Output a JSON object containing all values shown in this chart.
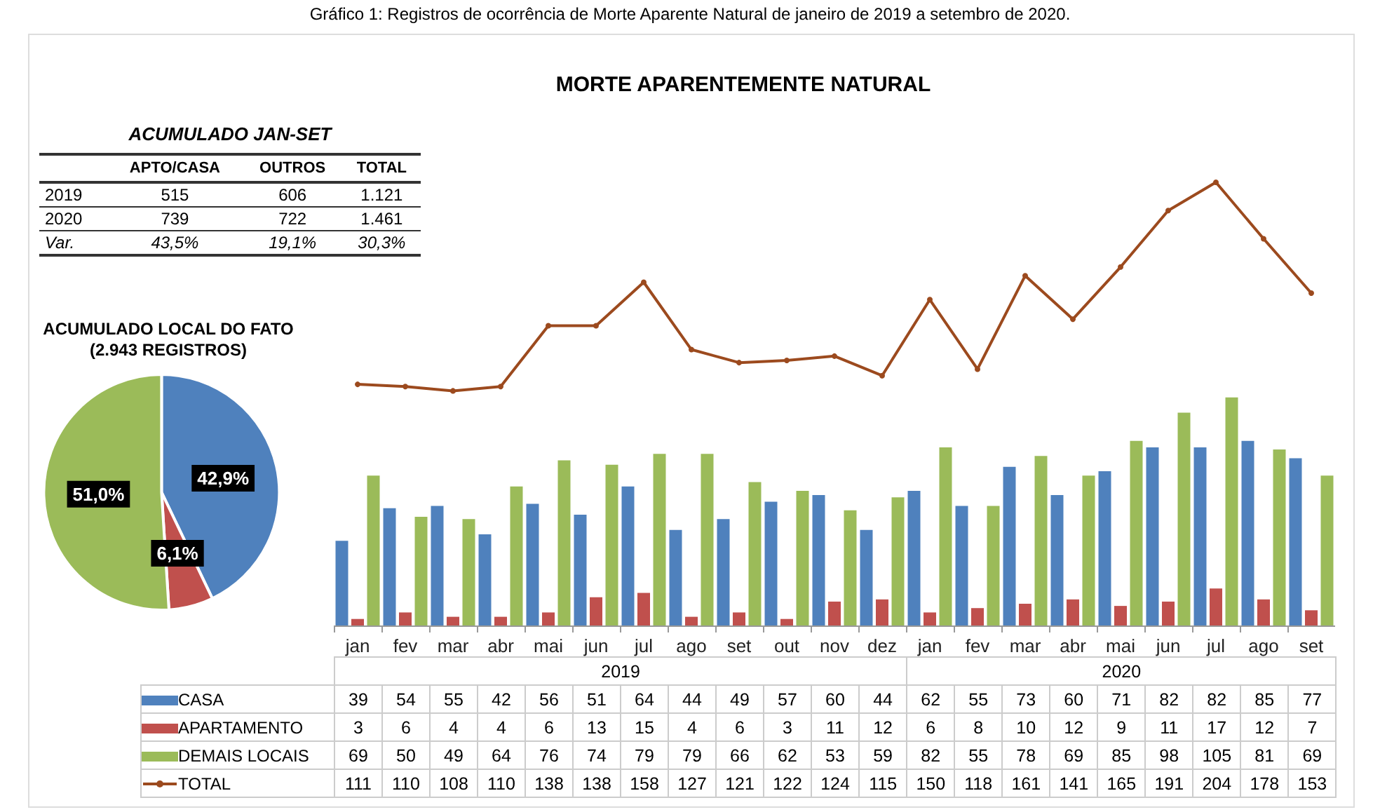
{
  "chart_data": [
    {
      "type": "other",
      "title": "ACUMULADO JAN-SET",
      "categories": [
        "APTO/CASA",
        "OUTROS",
        "TOTAL"
      ],
      "y_categories": [
        "2019",
        "2020",
        "Var."
      ],
      "cell_labels": [
        [
          "515",
          "606",
          "1.121"
        ],
        [
          "739",
          "722",
          "1.461"
        ],
        [
          "43,5%",
          "19,1%",
          "30,3%"
        ]
      ]
    },
    {
      "type": "pie",
      "title": "ACUMULADO LOCAL DO FATO\n(2.943 REGISTROS)",
      "categories": [
        null,
        null,
        null
      ],
      "values": [
        42.9,
        6.1,
        51.0
      ],
      "colors": [
        "#4f81bd",
        "#c0504d",
        "#9bbb59"
      ],
      "value_labels": [
        "42,9%",
        "6,1%",
        "51,0%"
      ]
    },
    {
      "type": "bar",
      "title": "MORTE APARENTEMENTE NATURAL",
      "categories": [
        "jan",
        "fev",
        "mar",
        "abr",
        "mai",
        "jun",
        "jul",
        "ago",
        "set",
        "out",
        "nov",
        "dez",
        "jan",
        "fev",
        "mar",
        "abr",
        "mai",
        "jun",
        "jul",
        "ago",
        "set"
      ],
      "series": [
        {
          "name": "CASA",
          "color": "#4f81bd",
          "values": [
            39,
            54,
            55,
            42,
            56,
            51,
            64,
            44,
            49,
            57,
            60,
            44,
            62,
            55,
            73,
            60,
            71,
            82,
            82,
            85,
            77
          ]
        },
        {
          "name": "APARTAMENTO",
          "color": "#c0504d",
          "values": [
            3,
            6,
            4,
            4,
            6,
            13,
            15,
            4,
            6,
            3,
            11,
            12,
            6,
            8,
            10,
            12,
            9,
            11,
            17,
            12,
            7
          ]
        },
        {
          "name": "DEMAIS LOCAIS",
          "color": "#9bbb59",
          "values": [
            69,
            50,
            49,
            64,
            76,
            74,
            79,
            79,
            66,
            62,
            53,
            59,
            82,
            55,
            78,
            69,
            85,
            98,
            105,
            81,
            69
          ]
        },
        {
          "name": "TOTAL",
          "type": "line",
          "color": "#9c4a1e",
          "values": [
            111,
            110,
            108,
            110,
            138,
            138,
            158,
            127,
            121,
            122,
            124,
            115,
            150,
            118,
            161,
            141,
            165,
            191,
            204,
            178,
            153
          ]
        }
      ],
      "marker": "circle",
      "data_labels": true,
      "legend": "bottom",
      "tick_labels": "x",
      "grid": false,
      "annotations": [
        "Gráfico 1: Registros de ocorrência de Morte Aparente Natural de janeiro de 2019 a setembro de 2020.",
        "2019",
        "2020"
      ]
    }
  ]
}
